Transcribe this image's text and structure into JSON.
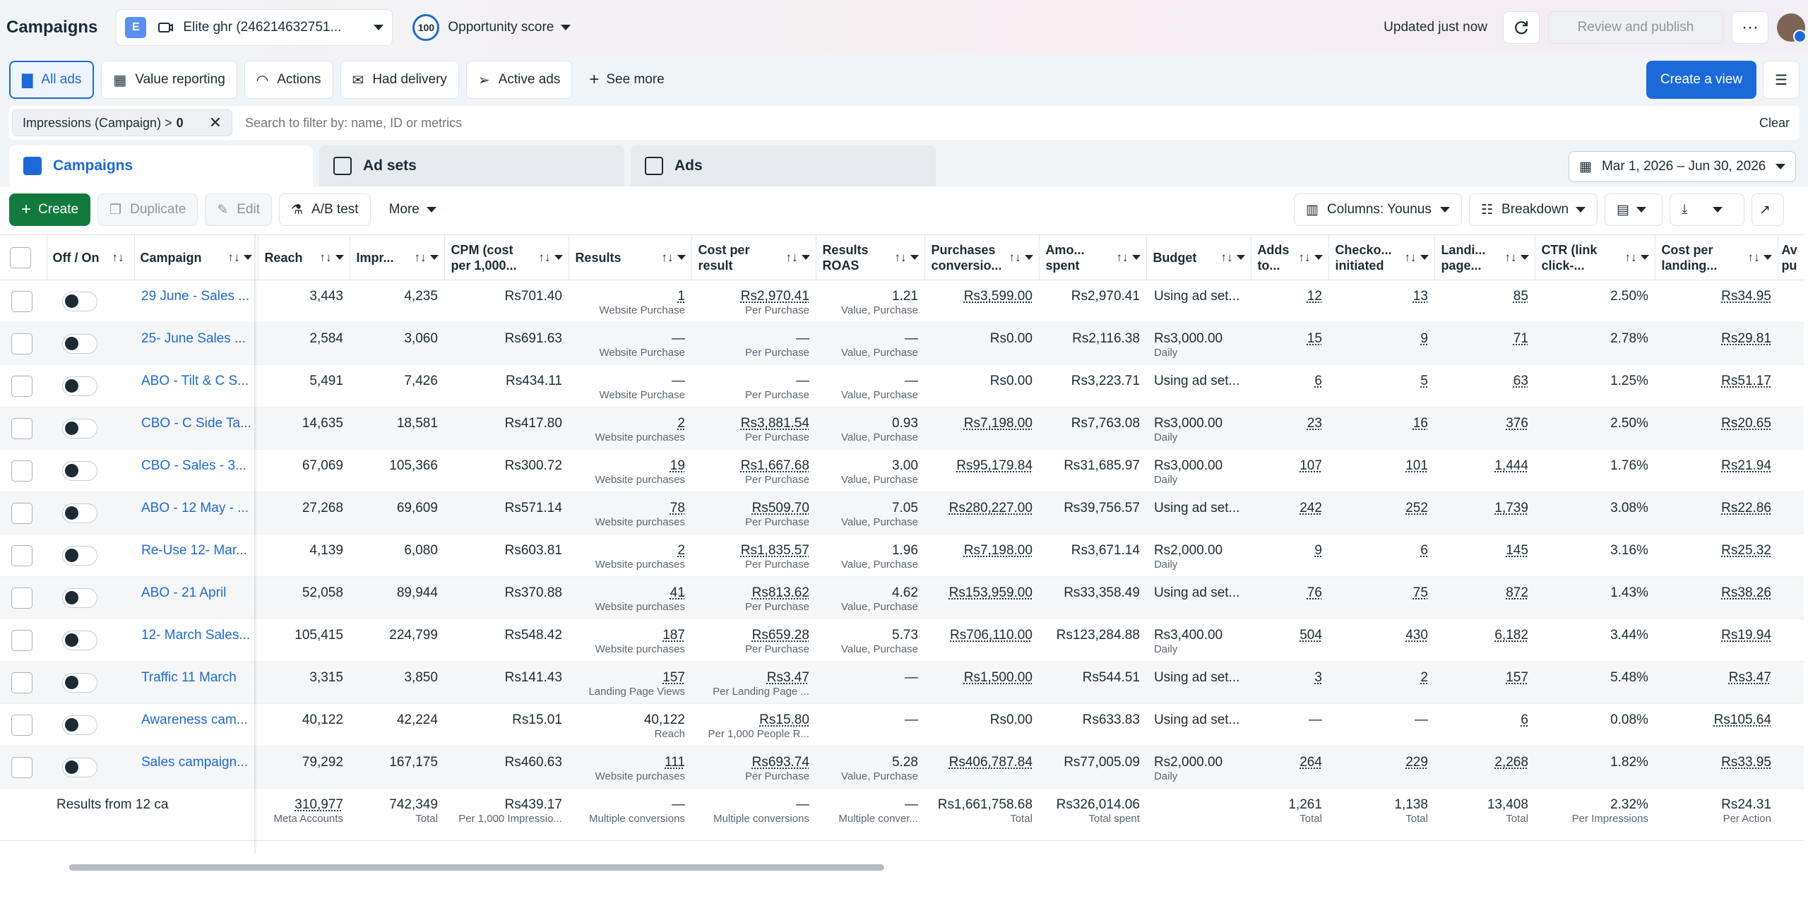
{
  "header": {
    "title": "Campaigns",
    "account_initial": "E",
    "account_name": "Elite ghr (246214632751...",
    "opportunity_value": "100",
    "opportunity_label": "Opportunity score",
    "updated": "Updated just now",
    "review_label": "Review and publish",
    "more_glyph": "···"
  },
  "views": {
    "tabs": [
      {
        "label": "All ads",
        "icon": "folder-icon"
      },
      {
        "label": "Value reporting",
        "icon": "building-icon"
      },
      {
        "label": "Actions",
        "icon": "gauge-icon"
      },
      {
        "label": "Had delivery",
        "icon": "envelope-icon"
      },
      {
        "label": "Active ads",
        "icon": "send-icon"
      }
    ],
    "see_more": "See more",
    "create_view": "Create a view"
  },
  "filter": {
    "chip_label": "Impressions (Campaign) >",
    "chip_value": "0",
    "placeholder": "Search to filter by: name, ID or metrics",
    "clear": "Clear"
  },
  "levels": {
    "campaigns": "Campaigns",
    "adsets": "Ad sets",
    "ads": "Ads"
  },
  "date_range": "Mar 1, 2026 – Jun 30, 2026",
  "toolbar": {
    "create": "Create",
    "duplicate": "Duplicate",
    "edit": "Edit",
    "ab_test": "A/B test",
    "more": "More",
    "columns": "Columns: Younus",
    "breakdown": "Breakdown"
  },
  "columns": {
    "off_on": "Off / On",
    "campaign": "Campaign",
    "reach": "Reach",
    "impressions": "Impr...",
    "cpm": "CPM (cost per 1,000...",
    "results": "Results",
    "cost_per_result": "Cost per result",
    "results_roas": "Results ROAS",
    "purchases_value": "Purchases conversio...",
    "amount_spent": "Amo... spent",
    "budget": "Budget",
    "adds_to_cart": "Adds to...",
    "checkouts": "Checko... initiated",
    "landing_page": "Landi... page...",
    "ctr": "CTR (link click-...",
    "cost_per_landing": "Cost per landing...",
    "avg_purchase": "Av pu"
  },
  "rows": [
    {
      "campaign": "29 June - Sales ...",
      "reach": "3,443",
      "impressions": "4,235",
      "cpm": "Rs701.40",
      "results": "1",
      "results_sub": "Website Purchase",
      "cpr": "Rs2,970.41",
      "cpr_sub": "Per Purchase",
      "roas": "1.21",
      "roas_sub": "Value, Purchase",
      "pcv": "Rs3,599.00",
      "spent": "Rs2,970.41",
      "budget": "Using ad set...",
      "budget_sub": "",
      "atc": "12",
      "checkouts": "13",
      "lpv": "85",
      "ctr": "2.50%",
      "cplpv": "Rs34.95"
    },
    {
      "campaign": "25- June Sales ...",
      "reach": "2,584",
      "impressions": "3,060",
      "cpm": "Rs691.63",
      "results": "—",
      "results_sub": "Website Purchase",
      "cpr": "—",
      "cpr_sub": "Per Purchase",
      "roas": "—",
      "roas_sub": "Value, Purchase",
      "pcv": "Rs0.00",
      "spent": "Rs2,116.38",
      "budget": "Rs3,000.00",
      "budget_sub": "Daily",
      "atc": "15",
      "checkouts": "9",
      "lpv": "71",
      "ctr": "2.78%",
      "cplpv": "Rs29.81"
    },
    {
      "campaign": "ABO - Tilt & C S...",
      "reach": "5,491",
      "impressions": "7,426",
      "cpm": "Rs434.11",
      "results": "—",
      "results_sub": "Website Purchase",
      "cpr": "—",
      "cpr_sub": "Per Purchase",
      "roas": "—",
      "roas_sub": "Value, Purchase",
      "pcv": "Rs0.00",
      "spent": "Rs3,223.71",
      "budget": "Using ad set...",
      "budget_sub": "",
      "atc": "6",
      "checkouts": "5",
      "lpv": "63",
      "ctr": "1.25%",
      "cplpv": "Rs51.17"
    },
    {
      "campaign": "CBO - C Side Ta...",
      "reach": "14,635",
      "impressions": "18,581",
      "cpm": "Rs417.80",
      "results": "2",
      "results_sub": "Website purchases",
      "cpr": "Rs3,881.54",
      "cpr_sub": "Per Purchase",
      "roas": "0.93",
      "roas_sub": "Value, Purchase",
      "pcv": "Rs7,198.00",
      "spent": "Rs7,763.08",
      "budget": "Rs3,000.00",
      "budget_sub": "Daily",
      "atc": "23",
      "checkouts": "16",
      "lpv": "376",
      "ctr": "2.50%",
      "cplpv": "Rs20.65"
    },
    {
      "campaign": "CBO - Sales - 3...",
      "reach": "67,069",
      "impressions": "105,366",
      "cpm": "Rs300.72",
      "results": "19",
      "results_sub": "Website purchases",
      "cpr": "Rs1,667.68",
      "cpr_sub": "Per Purchase",
      "roas": "3.00",
      "roas_sub": "Value, Purchase",
      "pcv": "Rs95,179.84",
      "spent": "Rs31,685.97",
      "budget": "Rs3,000.00",
      "budget_sub": "Daily",
      "atc": "107",
      "checkouts": "101",
      "lpv": "1,444",
      "ctr": "1.76%",
      "cplpv": "Rs21.94"
    },
    {
      "campaign": "ABO - 12 May - ...",
      "reach": "27,268",
      "impressions": "69,609",
      "cpm": "Rs571.14",
      "results": "78",
      "results_sub": "Website purchases",
      "cpr": "Rs509.70",
      "cpr_sub": "Per Purchase",
      "roas": "7.05",
      "roas_sub": "Value, Purchase",
      "pcv": "Rs280,227.00",
      "spent": "Rs39,756.57",
      "budget": "Using ad set...",
      "budget_sub": "",
      "atc": "242",
      "checkouts": "252",
      "lpv": "1,739",
      "ctr": "3.08%",
      "cplpv": "Rs22.86"
    },
    {
      "campaign": "Re-Use 12- Mar...",
      "reach": "4,139",
      "impressions": "6,080",
      "cpm": "Rs603.81",
      "results": "2",
      "results_sub": "Website purchases",
      "cpr": "Rs1,835.57",
      "cpr_sub": "Per Purchase",
      "roas": "1.96",
      "roas_sub": "Value, Purchase",
      "pcv": "Rs7,198.00",
      "spent": "Rs3,671.14",
      "budget": "Rs2,000.00",
      "budget_sub": "Daily",
      "atc": "9",
      "checkouts": "6",
      "lpv": "145",
      "ctr": "3.16%",
      "cplpv": "Rs25.32"
    },
    {
      "campaign": "ABO - 21 April",
      "reach": "52,058",
      "impressions": "89,944",
      "cpm": "Rs370.88",
      "results": "41",
      "results_sub": "Website purchases",
      "cpr": "Rs813.62",
      "cpr_sub": "Per Purchase",
      "roas": "4.62",
      "roas_sub": "Value, Purchase",
      "pcv": "Rs153,959.00",
      "spent": "Rs33,358.49",
      "budget": "Using ad set...",
      "budget_sub": "",
      "atc": "76",
      "checkouts": "75",
      "lpv": "872",
      "ctr": "1.43%",
      "cplpv": "Rs38.26"
    },
    {
      "campaign": "12- March Sales...",
      "reach": "105,415",
      "impressions": "224,799",
      "cpm": "Rs548.42",
      "results": "187",
      "results_sub": "Website purchases",
      "cpr": "Rs659.28",
      "cpr_sub": "Per Purchase",
      "roas": "5.73",
      "roas_sub": "Value, Purchase",
      "pcv": "Rs706,110.00",
      "spent": "Rs123,284.88",
      "budget": "Rs3,400.00",
      "budget_sub": "Daily",
      "atc": "504",
      "checkouts": "430",
      "lpv": "6,182",
      "ctr": "3.44%",
      "cplpv": "Rs19.94"
    },
    {
      "campaign": "Traffic 11 March",
      "reach": "3,315",
      "impressions": "3,850",
      "cpm": "Rs141.43",
      "results": "157",
      "results_sub": "Landing Page Views",
      "cpr": "Rs3.47",
      "cpr_sub": "Per Landing Page ...",
      "roas": "—",
      "roas_sub": "",
      "pcv": "Rs1,500.00",
      "spent": "Rs544.51",
      "budget": "Using ad set...",
      "budget_sub": "",
      "atc": "3",
      "checkouts": "2",
      "lpv": "157",
      "ctr": "5.48%",
      "cplpv": "Rs3.47"
    },
    {
      "campaign": "Awareness cam...",
      "reach": "40,122",
      "impressions": "42,224",
      "cpm": "Rs15.01",
      "results": "40,122",
      "results_sub": "Reach",
      "cpr": "Rs15.80",
      "cpr_sub": "Per 1,000 People R...",
      "roas": "—",
      "roas_sub": "",
      "pcv": "Rs0.00",
      "spent": "Rs633.83",
      "budget": "Using ad set...",
      "budget_sub": "",
      "atc": "—",
      "checkouts": "—",
      "lpv": "6",
      "ctr": "0.08%",
      "cplpv": "Rs105.64"
    },
    {
      "campaign": "Sales campaign...",
      "reach": "79,292",
      "impressions": "167,175",
      "cpm": "Rs460.63",
      "results": "111",
      "results_sub": "Website purchases",
      "cpr": "Rs693.74",
      "cpr_sub": "Per Purchase",
      "roas": "5.28",
      "roas_sub": "Value, Purchase",
      "pcv": "Rs406,787.84",
      "spent": "Rs77,005.09",
      "budget": "Rs2,000.00",
      "budget_sub": "Daily",
      "atc": "264",
      "checkouts": "229",
      "lpv": "2,268",
      "ctr": "1.82%",
      "cplpv": "Rs33.95"
    }
  ],
  "totals": {
    "label": "Results from 12 ca",
    "reach": "310,977",
    "reach_sub": "Meta Accounts",
    "impressions": "742,349",
    "impressions_sub": "Total",
    "cpm": "Rs439.17",
    "cpm_sub": "Per 1,000 Impressio...",
    "results": "—",
    "results_sub": "Multiple conversions",
    "cpr": "—",
    "cpr_sub": "Multiple conversions",
    "roas": "—",
    "roas_sub": "Multiple conver...",
    "pcv": "Rs1,661,758.68",
    "pcv_sub": "Total",
    "spent": "Rs326,014.06",
    "spent_sub": "Total spent",
    "atc": "1,261",
    "atc_sub": "Total",
    "checkouts": "1,138",
    "checkouts_sub": "Total",
    "lpv": "13,408",
    "lpv_sub": "Total",
    "ctr": "2.32%",
    "ctr_sub": "Per Impressions",
    "cplpv": "Rs24.31",
    "cplpv_sub": "Per Action"
  }
}
